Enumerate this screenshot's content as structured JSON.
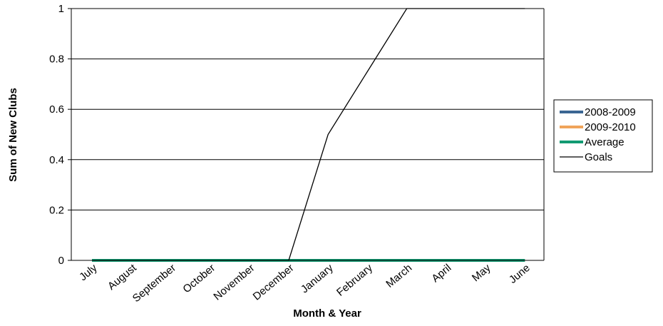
{
  "chart_data": {
    "type": "line",
    "xlabel": "Month & Year",
    "ylabel": "Sum of New Clubs",
    "categories": [
      "July",
      "August",
      "September",
      "October",
      "November",
      "December",
      "January",
      "February",
      "March",
      "April",
      "May",
      "June"
    ],
    "ylim": [
      0,
      1
    ],
    "yticks": [
      "0",
      "0.2",
      "0.4",
      "0.6",
      "0.8",
      "1"
    ],
    "ytick_values": [
      0,
      0.2,
      0.4,
      0.6,
      0.8,
      1
    ],
    "grid": "horizontal",
    "legend_position": "right",
    "series": [
      {
        "name": "2008-2009",
        "color": "#3b6693",
        "values": [
          0,
          0,
          0,
          0,
          0,
          0,
          0,
          0,
          0,
          0,
          0,
          0
        ]
      },
      {
        "name": "2009-2010",
        "color": "#f0a45a",
        "values": [
          0,
          0,
          0,
          0,
          0,
          0,
          0,
          0,
          0,
          0,
          0,
          0
        ]
      },
      {
        "name": "Average",
        "color": "#129a72",
        "values": [
          0,
          0,
          0,
          0,
          0,
          0,
          0,
          0,
          0,
          0,
          0,
          0
        ]
      },
      {
        "name": "Goals",
        "color": "#000000",
        "values": [
          0,
          0,
          0,
          0,
          0,
          0,
          0.5,
          0.75,
          1,
          1,
          1,
          1
        ]
      }
    ]
  }
}
